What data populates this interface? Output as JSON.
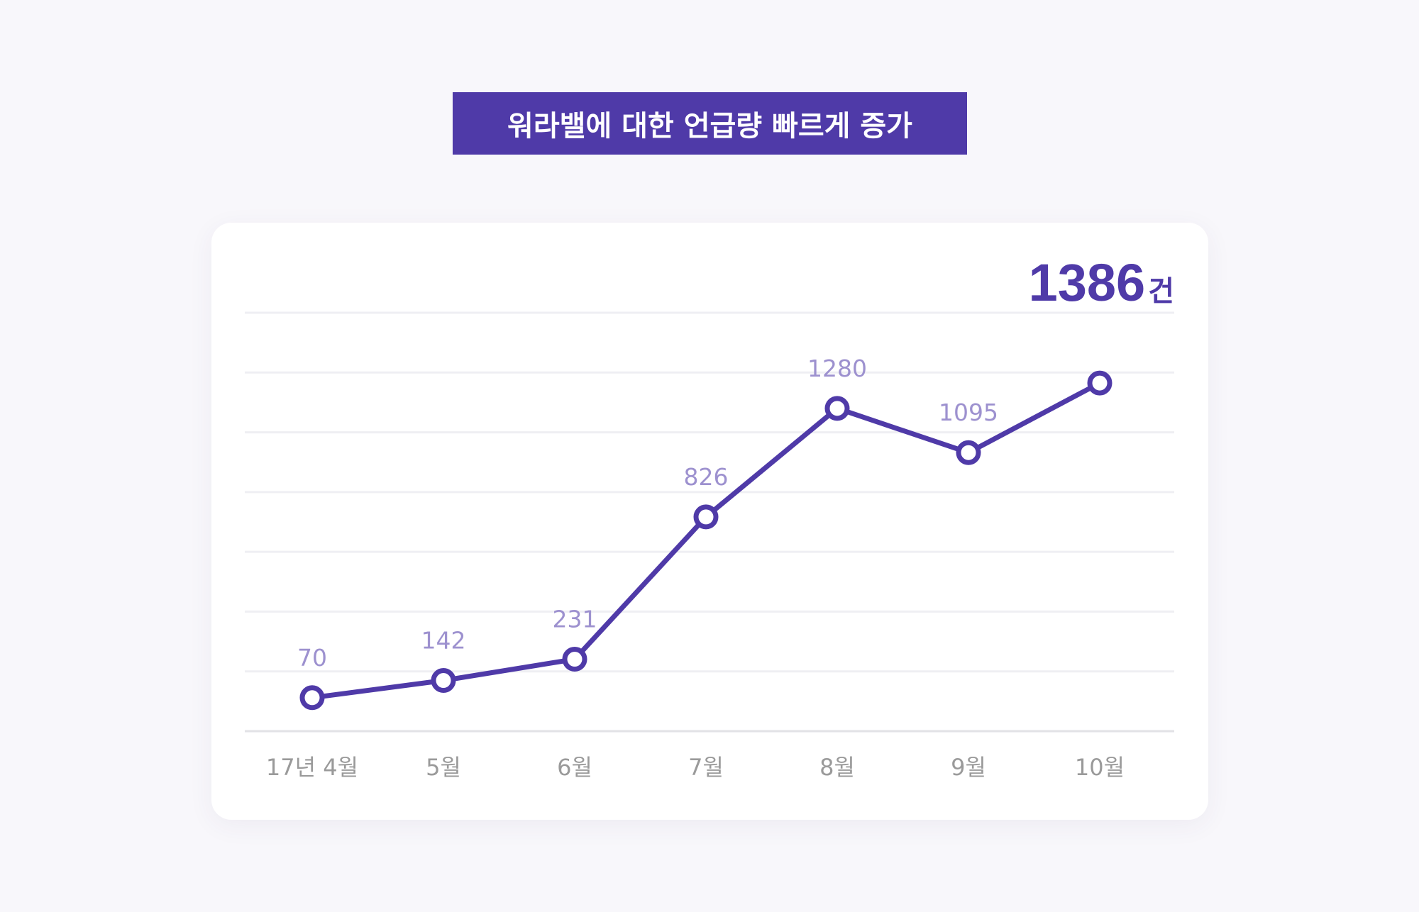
{
  "title": "워라밸에 대한 언급량 빠르게 증가",
  "chart_data": {
    "type": "line",
    "categories": [
      "17년 4월",
      "5월",
      "6월",
      "7월",
      "8월",
      "9월",
      "10월"
    ],
    "series": [
      {
        "values": [
          70,
          142,
          231,
          826,
          1280,
          1095,
          1386
        ],
        "data_labels": [
          "70",
          "142",
          "231",
          "826",
          "1280",
          "1095",
          ""
        ]
      }
    ],
    "highlight": {
      "value": "1386",
      "unit": "건"
    },
    "ylim": [
      -70,
      1680
    ],
    "grid": true,
    "xlabel": "",
    "ylabel": ""
  },
  "colors": {
    "accent": "#4f3aa8",
    "data_label": "#9d91cf",
    "tick_label": "#9a9a9a",
    "grid": "#efeff3",
    "axis": "#e2e2e6",
    "background": "#f8f7fb",
    "card": "#ffffff"
  }
}
